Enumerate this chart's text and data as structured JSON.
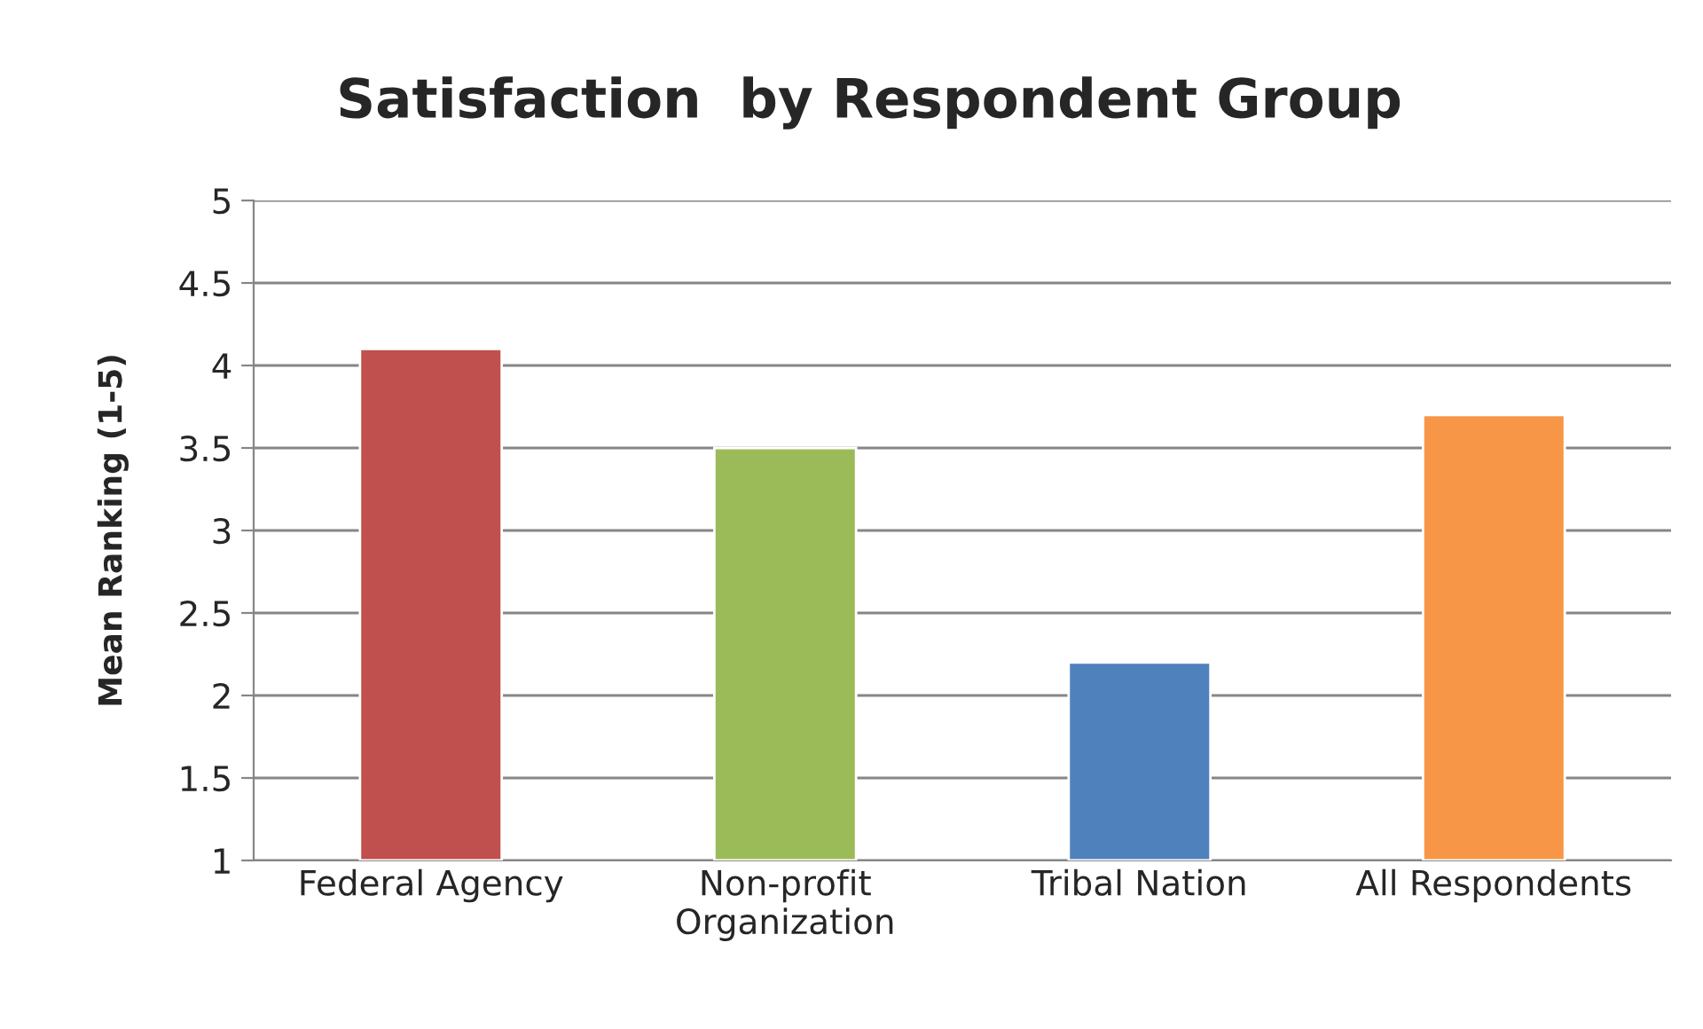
{
  "chart_data": {
    "type": "bar",
    "title": "Satisfaction  by Respondent Group",
    "ylabel": "Mean Ranking (1-5)",
    "categories": [
      "Federal Agency",
      "Non-profit\nOrganization",
      "Tribal Nation",
      "All Respondents"
    ],
    "values": [
      4.1,
      3.5,
      2.2,
      3.7
    ],
    "colors": [
      "#c0504d",
      "#9bbb59",
      "#4f81bd",
      "#f79646"
    ],
    "ylim": [
      1,
      5
    ],
    "yticks": [
      1,
      1.5,
      2,
      2.5,
      3,
      3.5,
      4,
      4.5,
      5
    ],
    "grid": "y",
    "legend": false
  }
}
